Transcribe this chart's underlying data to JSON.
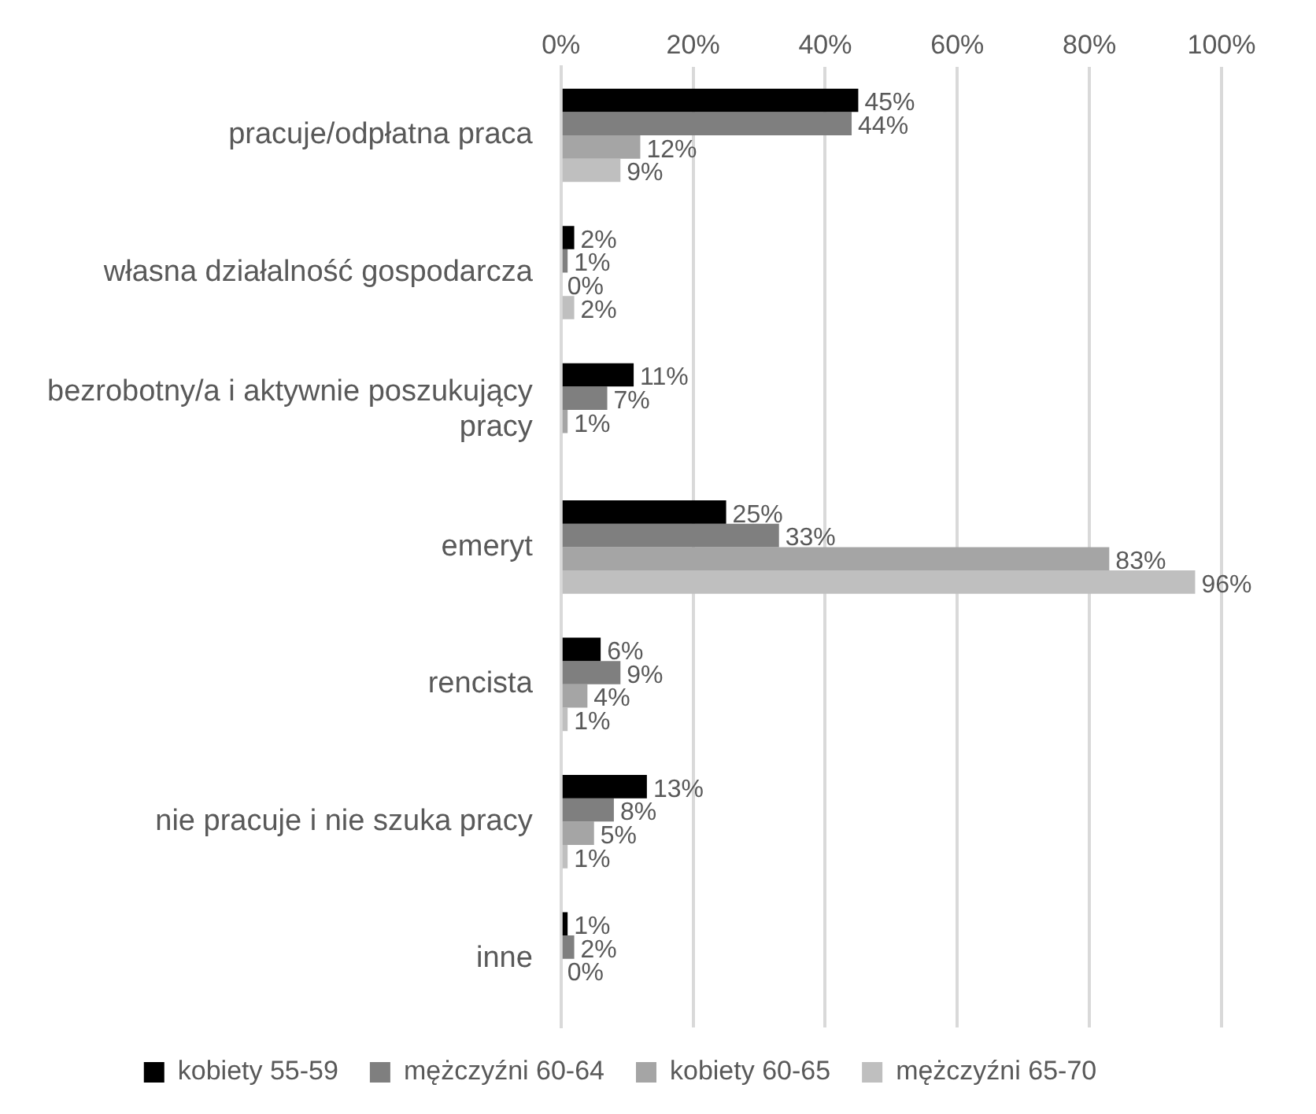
{
  "chart_data": {
    "type": "bar",
    "orientation": "horizontal",
    "categories": [
      "pracuje/odpłatna praca",
      "własna działalność gospodarcza",
      "bezrobotny/a i aktywnie poszukujący pracy",
      "emeryt",
      "rencista",
      "nie pracuje i nie szuka pracy",
      "inne"
    ],
    "series": [
      {
        "name": "kobiety 55-59",
        "color": "#000000",
        "values": [
          45,
          2,
          11,
          25,
          6,
          13,
          1
        ],
        "value_labels": [
          "45%",
          "2%",
          "11%",
          "25%",
          "6%",
          "13%",
          "1%"
        ]
      },
      {
        "name": "mężczyźni 60-64",
        "color": "#7f7f7f",
        "values": [
          44,
          1,
          7,
          33,
          9,
          8,
          2
        ],
        "value_labels": [
          "44%",
          "1%",
          "7%",
          "33%",
          "9%",
          "8%",
          "2%"
        ]
      },
      {
        "name": "kobiety 60-65",
        "color": "#a5a5a5",
        "values": [
          12,
          0,
          1,
          83,
          4,
          5,
          0
        ],
        "value_labels": [
          "12%",
          "0%",
          "1%",
          "83%",
          "4%",
          "5%",
          "0%"
        ]
      },
      {
        "name": "mężczyźni 65-70",
        "color": "#bfbfbf",
        "values": [
          9,
          2,
          null,
          96,
          1,
          1,
          null
        ],
        "value_labels": [
          "9%",
          "2%",
          null,
          "96%",
          "1%",
          "1%",
          null
        ]
      }
    ],
    "xlim": [
      0,
      100
    ],
    "xticks": [
      {
        "value": 0,
        "label": "0%"
      },
      {
        "value": 20,
        "label": "20%"
      },
      {
        "value": 40,
        "label": "40%"
      },
      {
        "value": 60,
        "label": "60%"
      },
      {
        "value": 80,
        "label": "80%"
      },
      {
        "value": 100,
        "label": "100%"
      }
    ],
    "grid": "x",
    "legend": "bottom"
  }
}
